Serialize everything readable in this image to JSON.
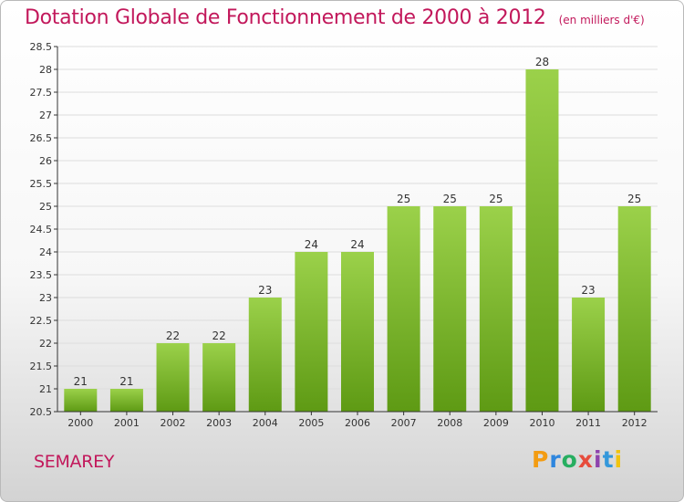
{
  "header": {
    "title": "Dotation Globale de Fonctionnement de 2000 à 2012",
    "subtitle": "(en milliers d'€)"
  },
  "footer": {
    "commune": "SEMAREY",
    "logo": [
      "P",
      "r",
      "o",
      "x",
      "i",
      "t",
      "i"
    ]
  },
  "colors": {
    "title": "#c2185b",
    "bar_light": "#9bd14a",
    "bar_dark": "#5e9a14",
    "grid": "#dddddd",
    "axis": "#333333"
  },
  "chart_data": {
    "type": "bar",
    "title": "Dotation Globale de Fonctionnement de 2000 à 2012",
    "subtitle": "(en milliers d'€)",
    "xlabel": "",
    "ylabel": "",
    "categories": [
      "2000",
      "2001",
      "2002",
      "2003",
      "2004",
      "2005",
      "2006",
      "2007",
      "2008",
      "2009",
      "2010",
      "2011",
      "2012"
    ],
    "values": [
      21,
      21,
      22,
      22,
      23,
      24,
      24,
      25,
      25,
      25,
      28,
      23,
      25
    ],
    "value_labels": [
      "21",
      "21",
      "22",
      "22",
      "23",
      "24",
      "24",
      "25",
      "25",
      "25",
      "28",
      "23",
      "25"
    ],
    "ylim": [
      20.5,
      28.5
    ],
    "yticks": [
      "20.5",
      "21",
      "21.5",
      "22",
      "22.5",
      "23",
      "23.5",
      "24",
      "24.5",
      "25",
      "25.5",
      "26",
      "26.5",
      "27",
      "27.5",
      "28",
      "28.5"
    ],
    "grid": true,
    "legend": "none"
  }
}
